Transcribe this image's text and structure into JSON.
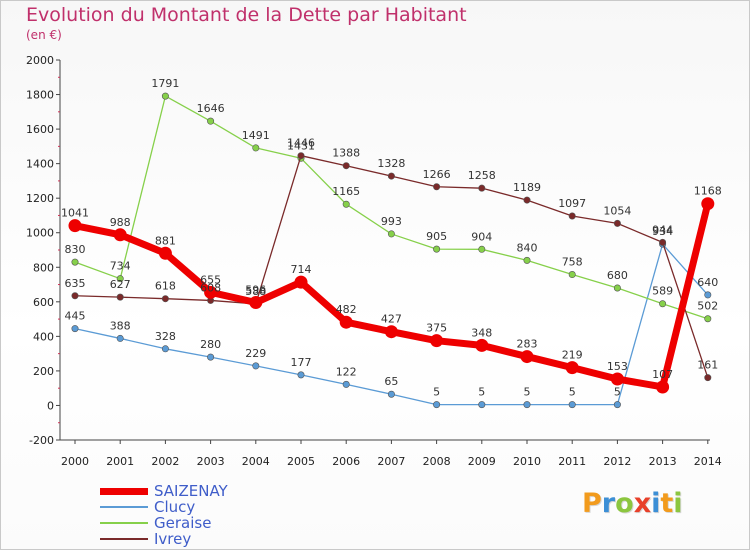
{
  "title": "Evolution du Montant de la Dette par Habitant",
  "subtitle": "(en €)",
  "chart_data": {
    "type": "line",
    "title": "Evolution du Montant de la Dette par Habitant",
    "ylabel": "(en €)",
    "x": [
      "2000",
      "2001",
      "2002",
      "2003",
      "2004",
      "2005",
      "2006",
      "2007",
      "2008",
      "2009",
      "2010",
      "2011",
      "2012",
      "2013",
      "2014"
    ],
    "yticks": [
      -200,
      0,
      200,
      400,
      600,
      800,
      1000,
      1200,
      1400,
      1600,
      1800,
      2000
    ],
    "ylim": [
      -200,
      2000
    ],
    "grid": false,
    "legend_position": "bottom-left",
    "series": [
      {
        "name": "SAIZENAY",
        "color": "#ee0000",
        "width": 7,
        "values": [
          1041,
          988,
          881,
          655,
          596,
          714,
          482,
          427,
          375,
          348,
          283,
          219,
          153,
          107,
          1168
        ],
        "labels": [
          "1041",
          "988",
          "881",
          "655",
          "596",
          "714",
          "482",
          "427",
          "375",
          "348",
          "283",
          "219",
          "153",
          "107",
          "1168"
        ]
      },
      {
        "name": "Clucy",
        "color": "#5b9bd5",
        "width": 1.3,
        "values": [
          445,
          388,
          328,
          280,
          229,
          177,
          122,
          65,
          5,
          5,
          5,
          5,
          5,
          934,
          640
        ],
        "labels": [
          "445",
          "388",
          "328",
          "280",
          "229",
          "177",
          "122",
          "65",
          "5",
          "5",
          "5",
          "5",
          "5",
          "934",
          "640"
        ]
      },
      {
        "name": "Geraise",
        "color": "#86d04a",
        "width": 1.3,
        "values": [
          830,
          734,
          1791,
          1646,
          1491,
          1431,
          1165,
          993,
          905,
          904,
          840,
          758,
          680,
          589,
          502
        ],
        "labels": [
          "830",
          "734",
          "1791",
          "1646",
          "1491",
          "1431",
          "1165",
          "993",
          "905",
          "904",
          "840",
          "758",
          "680",
          "589",
          "502"
        ]
      },
      {
        "name": "Ivrey",
        "color": "#7a2a2a",
        "width": 1.3,
        "values": [
          635,
          627,
          618,
          608,
          588,
          1446,
          1388,
          1328,
          1266,
          1258,
          1189,
          1097,
          1054,
          944,
          161
        ],
        "labels": [
          "635",
          "627",
          "618",
          "608",
          "588",
          "1446",
          "1388",
          "1328",
          "1266",
          "1258",
          "1189",
          "1097",
          "1054",
          "944",
          "161"
        ]
      }
    ]
  },
  "legend": [
    {
      "name": "SAIZENAY",
      "color": "#ee0000",
      "thickness": 7
    },
    {
      "name": "Clucy",
      "color": "#5b9bd5",
      "thickness": 2
    },
    {
      "name": "Geraise",
      "color": "#86d04a",
      "thickness": 2
    },
    {
      "name": "Ivrey",
      "color": "#7a2a2a",
      "thickness": 2
    }
  ],
  "logo": {
    "letters": [
      "P",
      "r",
      "o",
      "x",
      "i",
      "t",
      "i"
    ],
    "colors": [
      "#f29b1d",
      "#3c8fd6",
      "#8cc63f",
      "#e8402a",
      "#3c8fd6",
      "#f29b1d",
      "#8cc63f"
    ]
  }
}
